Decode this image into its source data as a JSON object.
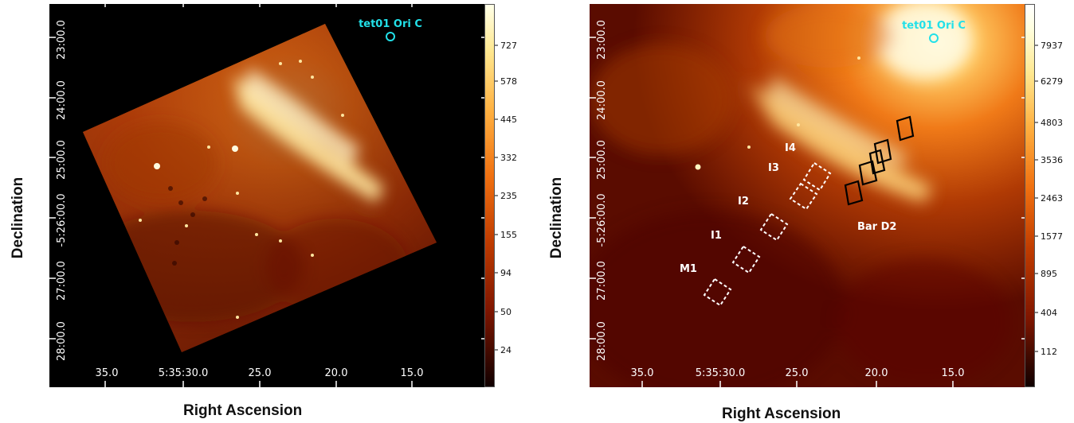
{
  "panels": {
    "left": {
      "ylabel": "Declination",
      "xlabel": "Right Ascension",
      "dec_ticks": [
        "23:00.0",
        "24:00.0",
        "25:00.0",
        "-5:26:00.0",
        "27:00.0",
        "28:00.0"
      ],
      "ra_ticks": [
        "35.0",
        "5:35:30.0",
        "25.0",
        "20.0",
        "15.0"
      ],
      "colorbar_ticks": [
        "727",
        "578",
        "445",
        "332",
        "235",
        "155",
        "94",
        "50",
        "24"
      ],
      "star_label": "tet01 Ori C",
      "star_color": "#22e0e8"
    },
    "right": {
      "ylabel": "Declination",
      "xlabel": "Right Ascension",
      "dec_ticks": [
        "23:00.0",
        "24:00.0",
        "25:00.0",
        "-5:26:00.0",
        "27:00.0",
        "28:00.0"
      ],
      "ra_ticks": [
        "35.0",
        "5:35:30.0",
        "25.0",
        "20.0",
        "15.0"
      ],
      "colorbar_ticks": [
        "7937",
        "6279",
        "4803",
        "3536",
        "2463",
        "1577",
        "895",
        "404",
        "112"
      ],
      "star_label": "tet01 Ori C",
      "star_color": "#22e0e8",
      "regions": {
        "I4": "I4",
        "I3": "I3",
        "I2": "I2",
        "I1": "I1",
        "M1": "M1",
        "bar": "Bar D2"
      }
    }
  },
  "colors": {
    "background": "#000000",
    "nebula_dark": "#3a0400",
    "nebula_mid": "#b53a00",
    "nebula_bright": "#ff9a2e",
    "nebula_peak": "#fff0b0"
  }
}
